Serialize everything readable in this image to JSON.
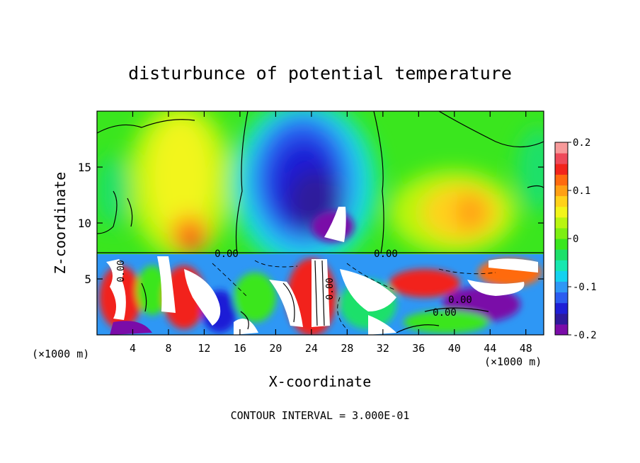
{
  "chart_data": {
    "type": "heatmap",
    "title": "disturbunce of potential temperature",
    "xlabel": "X-coordinate",
    "ylabel": "Z-coordinate",
    "x_unit": "(×1000 m)",
    "footer": "CONTOUR INTERVAL = 3.000E-01",
    "xlim": [
      0,
      50
    ],
    "ylim": [
      0,
      20
    ],
    "x_ticks": [
      4,
      8,
      12,
      16,
      20,
      24,
      28,
      32,
      36,
      40,
      44,
      48
    ],
    "y_ticks": [
      5,
      10,
      15
    ],
    "contour_labels": [
      "0.00",
      "0.00",
      "0.00",
      "0.00",
      "0.00",
      "0.00"
    ],
    "colorbar": {
      "min": -0.2,
      "max": 0.2,
      "ticks": [
        "0.2",
        "0.1",
        "0",
        "-0.1",
        "-0.2"
      ],
      "colors": [
        "#7a0ca8",
        "#2e1a9c",
        "#1f1fd6",
        "#2b5cf0",
        "#2e97f5",
        "#14d2ef",
        "#17e8b0",
        "#1de06a",
        "#3ae61e",
        "#7def12",
        "#b9f511",
        "#f2f51a",
        "#ffd21a",
        "#ffa014",
        "#ff6a0f",
        "#f2241c",
        "#ee4a5a",
        "#f79a9a"
      ]
    }
  }
}
